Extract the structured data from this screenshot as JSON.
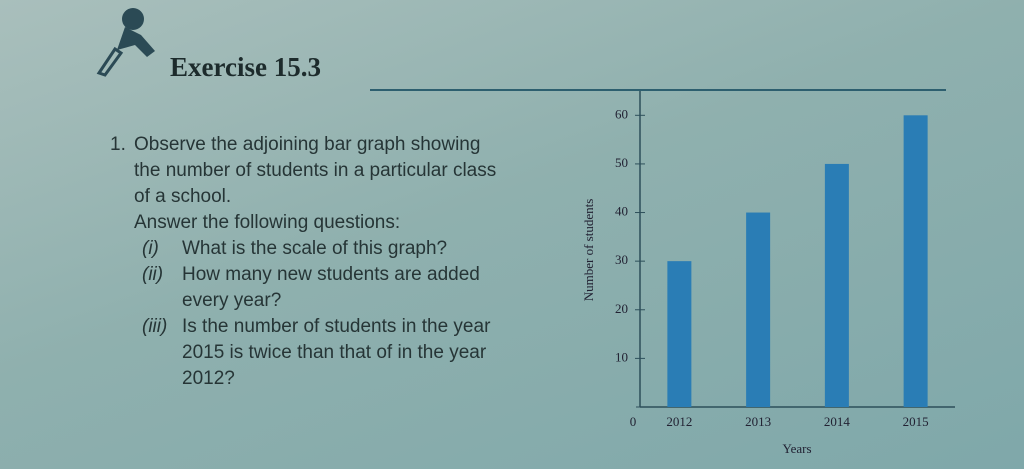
{
  "header": {
    "title": "Exercise 15.3"
  },
  "question": {
    "number": "1.",
    "text": "Observe the adjoining bar graph showing the number of students in a particular class of a school.",
    "prompt": "Answer the following questions:",
    "parts": [
      {
        "label": "(i)",
        "text": "What is the scale of this graph?"
      },
      {
        "label": "(ii)",
        "text": "How many new students are added every year?"
      },
      {
        "label": "(iii)",
        "text": "Is the number of students in the year 2015 is twice than that of in the year 2012?"
      }
    ]
  },
  "chart_data": {
    "type": "bar",
    "x_label": "Years",
    "y_label": "Number of students",
    "categories": [
      "2012",
      "2013",
      "2014",
      "2015"
    ],
    "values": [
      30,
      40,
      50,
      60
    ],
    "color": "#2a7db5",
    "ylim": [
      0,
      65
    ],
    "yticks": [
      0,
      10,
      20,
      30,
      40,
      50,
      60
    ]
  }
}
